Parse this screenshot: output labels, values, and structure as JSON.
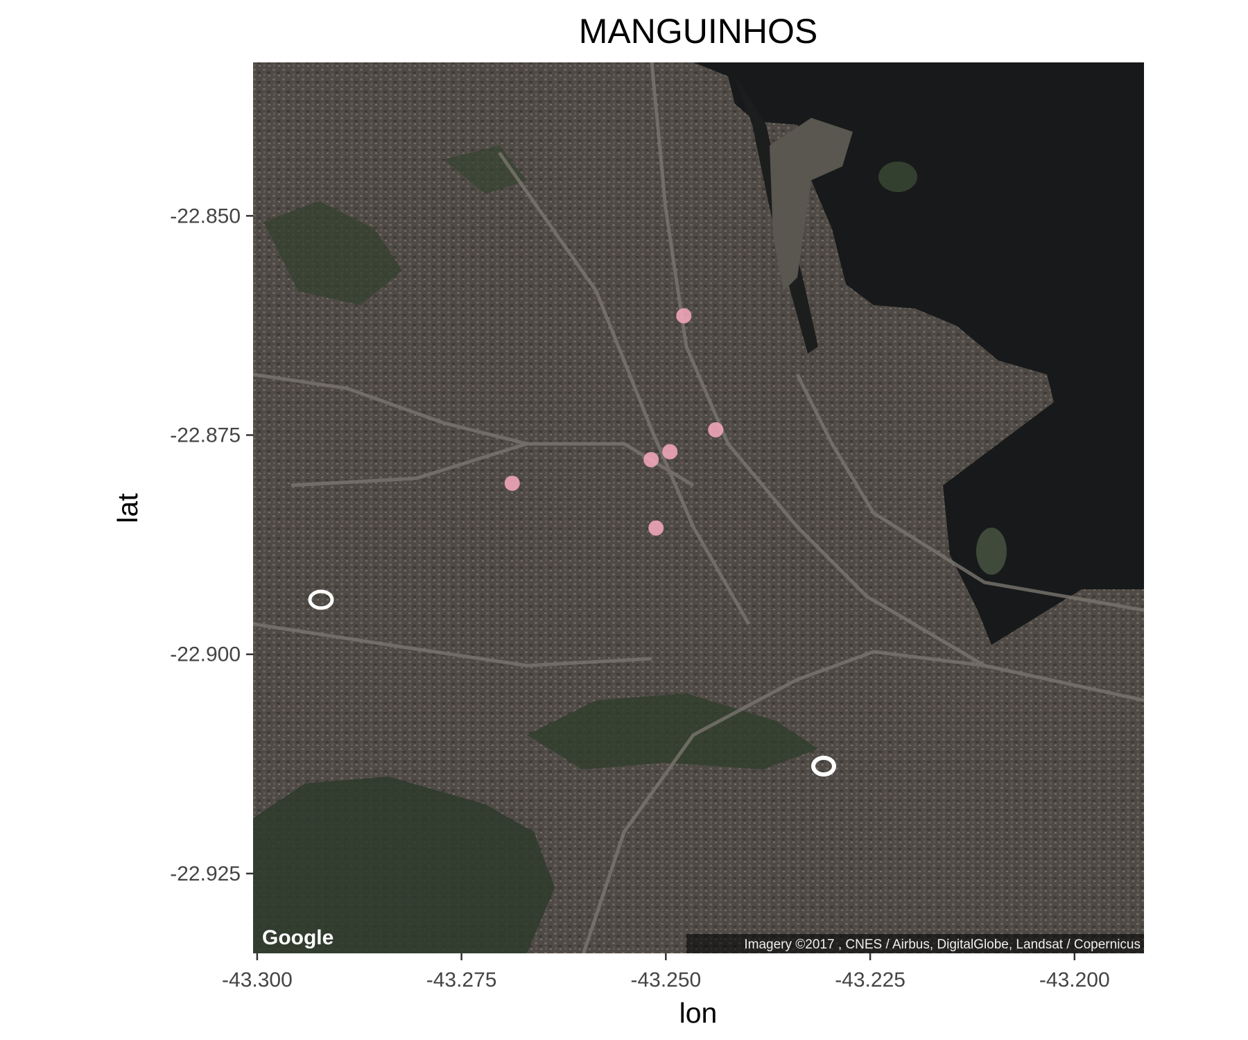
{
  "chart_data": {
    "type": "scatter",
    "title": "MANGUINHOS",
    "xlabel": "lon",
    "ylabel": "lat",
    "xlim": [
      -43.3005,
      -43.1915
    ],
    "ylim": [
      -22.9341,
      -22.8325
    ],
    "x_ticks": [
      -43.3,
      -43.275,
      -43.25,
      -43.225,
      -43.2
    ],
    "x_tick_labels": [
      "-43.300",
      "-43.275",
      "-43.250",
      "-43.225",
      "-43.200"
    ],
    "y_ticks": [
      -22.85,
      -22.875,
      -22.9,
      -22.925
    ],
    "y_tick_labels": [
      "-22.850",
      "-22.875",
      "-22.900",
      "-22.925"
    ],
    "grid": false,
    "background": "satellite-map",
    "point_color": "#f4a7b9",
    "series": [
      {
        "points": [
          {
            "x": -43.2478,
            "y": -22.8614
          },
          {
            "x": -43.2439,
            "y": -22.8744
          },
          {
            "x": -43.2495,
            "y": -22.8769
          },
          {
            "x": -43.2518,
            "y": -22.8778
          },
          {
            "x": -43.2688,
            "y": -22.8805
          },
          {
            "x": -43.2512,
            "y": -22.8856
          }
        ]
      }
    ],
    "basemap": {
      "logo": "Google",
      "attribution": "Imagery ©2017 , CNES / Airbus, DigitalGlobe, Landsat / Copernicus"
    }
  }
}
